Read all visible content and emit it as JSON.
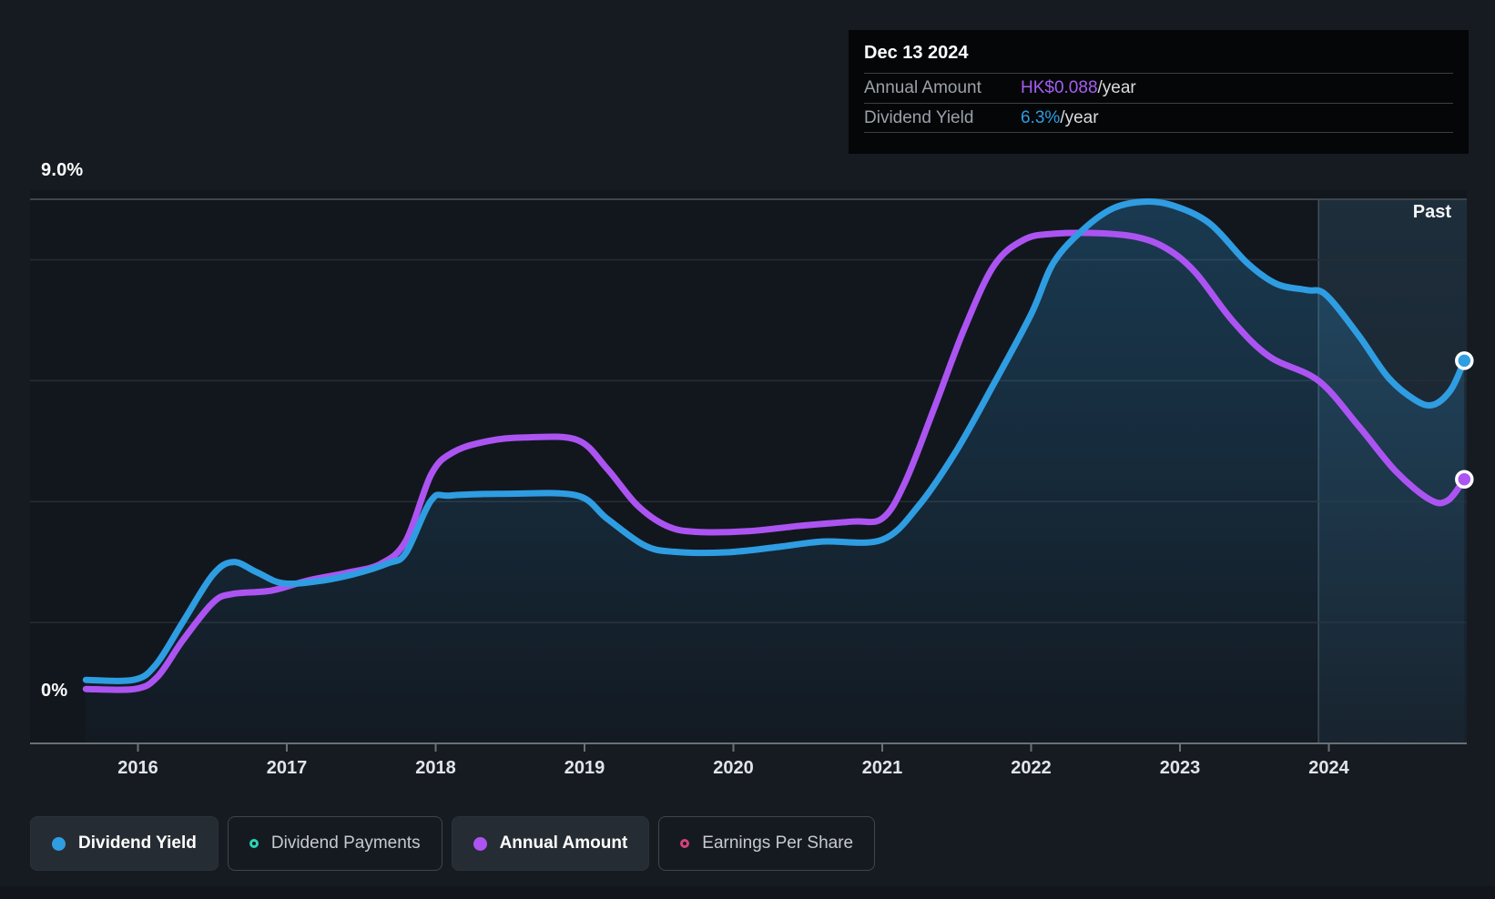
{
  "tooltip": {
    "date": "Dec 13 2024",
    "rows": [
      {
        "label": "Annual Amount",
        "value": "HK$0.088",
        "suffix": "/year",
        "value_color": "#a55ef2"
      },
      {
        "label": "Dividend Yield",
        "value": "6.3%",
        "suffix": "/year",
        "value_color": "#2f9de2"
      }
    ]
  },
  "y_axis": {
    "top_label": "9.0%",
    "bottom_label": "0%"
  },
  "x_axis": {
    "years": [
      "2016",
      "2017",
      "2018",
      "2019",
      "2020",
      "2021",
      "2022",
      "2023",
      "2024"
    ]
  },
  "past_region": {
    "label": "Past"
  },
  "legend": [
    {
      "label": "Dividend Yield",
      "color": "#2f9de2",
      "marker": "filled",
      "active": true
    },
    {
      "label": "Dividend Payments",
      "color": "#2bd4b4",
      "marker": "ring",
      "active": false
    },
    {
      "label": "Annual Amount",
      "color": "#ac54f2",
      "marker": "filled",
      "active": true
    },
    {
      "label": "Earnings Per Share",
      "color": "#d4427e",
      "marker": "ring",
      "active": false
    }
  ],
  "colors": {
    "background": "#161b22",
    "plot_background": "#12171e",
    "gridline": "#272d34",
    "top_gridline": "#3e454d",
    "axis": "#6a7076",
    "past_tint": "#5ca4d2",
    "divider": "rgba(210,230,242,0.22)"
  },
  "chart_data": {
    "type": "line",
    "x_domain": [
      2015.65,
      2024.93
    ],
    "y_domain": [
      0,
      9
    ],
    "y_unit": "%",
    "x_ticks": [
      2016,
      2017,
      2018,
      2019,
      2020,
      2021,
      2022,
      2023,
      2024
    ],
    "gridlines_pct": [
      2,
      4,
      6,
      8
    ],
    "top_gridline_pct": 9,
    "past_region_start": 2023.93,
    "legend_position": "bottom",
    "series": [
      {
        "name": "Annual Amount",
        "color": "#ac54f2",
        "end_marker": true,
        "area": false,
        "points": [
          [
            2015.65,
            0.9
          ],
          [
            2015.98,
            0.9
          ],
          [
            2016.13,
            1.1
          ],
          [
            2016.3,
            1.7
          ],
          [
            2016.5,
            2.32
          ],
          [
            2016.63,
            2.47
          ],
          [
            2016.9,
            2.53
          ],
          [
            2017.15,
            2.7
          ],
          [
            2017.4,
            2.82
          ],
          [
            2017.63,
            2.97
          ],
          [
            2017.8,
            3.35
          ],
          [
            2017.97,
            4.45
          ],
          [
            2018.12,
            4.82
          ],
          [
            2018.35,
            5.0
          ],
          [
            2018.6,
            5.06
          ],
          [
            2018.95,
            5.02
          ],
          [
            2019.15,
            4.55
          ],
          [
            2019.35,
            3.95
          ],
          [
            2019.55,
            3.6
          ],
          [
            2019.75,
            3.5
          ],
          [
            2020.1,
            3.51
          ],
          [
            2020.45,
            3.6
          ],
          [
            2020.8,
            3.67
          ],
          [
            2021.0,
            3.72
          ],
          [
            2021.15,
            4.3
          ],
          [
            2021.35,
            5.55
          ],
          [
            2021.55,
            6.85
          ],
          [
            2021.75,
            7.9
          ],
          [
            2021.95,
            8.33
          ],
          [
            2022.15,
            8.43
          ],
          [
            2022.45,
            8.44
          ],
          [
            2022.7,
            8.38
          ],
          [
            2022.9,
            8.2
          ],
          [
            2023.1,
            7.8
          ],
          [
            2023.35,
            7.0
          ],
          [
            2023.6,
            6.4
          ],
          [
            2023.93,
            6.0
          ],
          [
            2024.2,
            5.25
          ],
          [
            2024.45,
            4.5
          ],
          [
            2024.68,
            4.03
          ],
          [
            2024.8,
            4.02
          ],
          [
            2024.91,
            4.37
          ]
        ]
      },
      {
        "name": "Dividend Yield",
        "color": "#2f9de2",
        "end_marker": true,
        "area": true,
        "points": [
          [
            2015.65,
            1.05
          ],
          [
            2015.97,
            1.05
          ],
          [
            2016.12,
            1.3
          ],
          [
            2016.3,
            2.0
          ],
          [
            2016.5,
            2.78
          ],
          [
            2016.64,
            3.0
          ],
          [
            2016.8,
            2.83
          ],
          [
            2016.97,
            2.65
          ],
          [
            2017.2,
            2.68
          ],
          [
            2017.45,
            2.8
          ],
          [
            2017.68,
            2.98
          ],
          [
            2017.8,
            3.15
          ],
          [
            2017.97,
            4.02
          ],
          [
            2018.1,
            4.1
          ],
          [
            2018.5,
            4.13
          ],
          [
            2018.95,
            4.1
          ],
          [
            2019.15,
            3.72
          ],
          [
            2019.4,
            3.28
          ],
          [
            2019.6,
            3.17
          ],
          [
            2019.95,
            3.16
          ],
          [
            2020.3,
            3.25
          ],
          [
            2020.6,
            3.34
          ],
          [
            2021.0,
            3.37
          ],
          [
            2021.25,
            3.95
          ],
          [
            2021.5,
            4.85
          ],
          [
            2021.75,
            5.95
          ],
          [
            2022.0,
            7.1
          ],
          [
            2022.15,
            7.95
          ],
          [
            2022.35,
            8.5
          ],
          [
            2022.55,
            8.85
          ],
          [
            2022.75,
            8.96
          ],
          [
            2022.95,
            8.9
          ],
          [
            2023.2,
            8.6
          ],
          [
            2023.45,
            7.95
          ],
          [
            2023.65,
            7.6
          ],
          [
            2023.85,
            7.5
          ],
          [
            2023.98,
            7.42
          ],
          [
            2024.2,
            6.75
          ],
          [
            2024.4,
            6.05
          ],
          [
            2024.58,
            5.68
          ],
          [
            2024.7,
            5.6
          ],
          [
            2024.82,
            5.85
          ],
          [
            2024.91,
            6.33
          ]
        ]
      }
    ]
  }
}
